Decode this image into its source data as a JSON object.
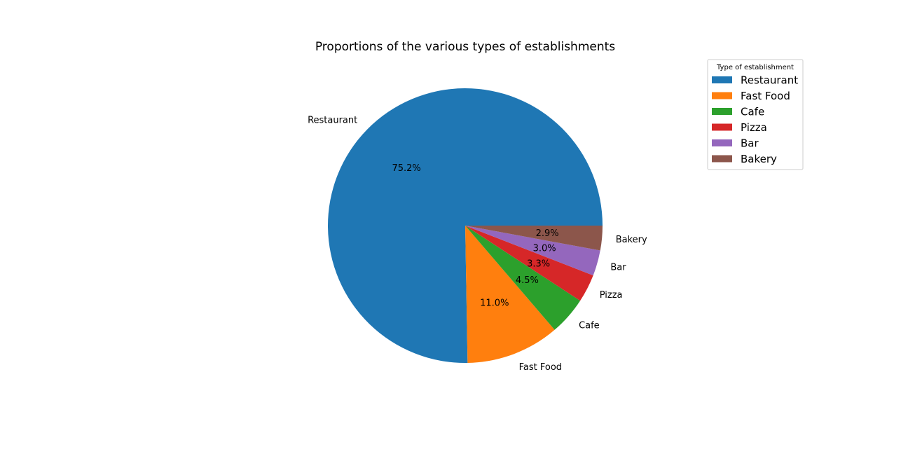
{
  "chart_data": {
    "type": "pie",
    "title": "Proportions of the various types of establishments",
    "categories": [
      "Restaurant",
      "Fast Food",
      "Cafe",
      "Pizza",
      "Bar",
      "Bakery"
    ],
    "values": [
      75.2,
      11.0,
      4.5,
      3.3,
      3.0,
      2.9
    ],
    "value_labels": [
      "75.2%",
      "11.0%",
      "4.5%",
      "3.3%",
      "3.0%",
      "2.9%"
    ],
    "colors": [
      "#1f77b4",
      "#ff7f0e",
      "#2ca02c",
      "#d62728",
      "#9467bd",
      "#8c564b"
    ],
    "direction": "counterclockwise",
    "start_angle_deg": 0,
    "legend": {
      "title": "Type of establishment",
      "placement": "upper-right-outside",
      "entries": [
        "Restaurant",
        "Fast Food",
        "Cafe",
        "Pizza",
        "Bar",
        "Bakery"
      ]
    }
  }
}
